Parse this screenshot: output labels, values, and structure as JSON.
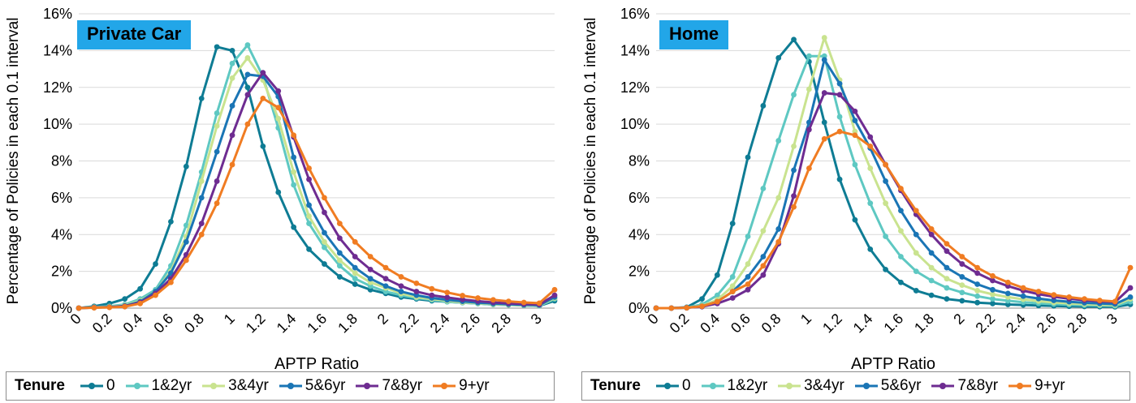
{
  "chart_data": [
    {
      "type": "line",
      "title": "Private Car",
      "xlabel": "APTP Ratio",
      "ylabel": "Percentage of Policies in each 0.1 interval",
      "xlim": [
        0,
        3.1
      ],
      "ylim": [
        0,
        16
      ],
      "x_tick_labels": [
        "0",
        "0.2",
        "0.4",
        "0.6",
        "0.8",
        "1",
        "1.2",
        "1.4",
        "1.6",
        "1.8",
        "2",
        "2.2",
        "2.4",
        "2.6",
        "2.8",
        "3"
      ],
      "y_tick_labels": [
        "0%",
        "2%",
        "4%",
        "6%",
        "8%",
        "10%",
        "12%",
        "14%",
        "16%"
      ],
      "grid": true,
      "legend_title": "Tenure",
      "x": [
        0,
        0.1,
        0.2,
        0.3,
        0.4,
        0.5,
        0.6,
        0.7,
        0.8,
        0.9,
        1.0,
        1.1,
        1.2,
        1.3,
        1.4,
        1.5,
        1.6,
        1.7,
        1.8,
        1.9,
        2.0,
        2.1,
        2.2,
        2.3,
        2.4,
        2.5,
        2.6,
        2.7,
        2.8,
        2.9,
        3.0,
        3.1
      ],
      "series": [
        {
          "name": "0",
          "color": "#0e7c94",
          "values": [
            0,
            0.1,
            0.25,
            0.5,
            1.05,
            2.4,
            4.7,
            7.7,
            11.4,
            14.2,
            14.0,
            12.0,
            8.8,
            6.3,
            4.4,
            3.2,
            2.4,
            1.7,
            1.3,
            1.0,
            0.8,
            0.6,
            0.5,
            0.4,
            0.35,
            0.3,
            0.25,
            0.2,
            0.18,
            0.15,
            0.12,
            0.4
          ]
        },
        {
          "name": "1&2yr",
          "color": "#5ec8c2",
          "values": [
            0,
            0.05,
            0.1,
            0.2,
            0.5,
            1.0,
            2.3,
            4.5,
            7.4,
            10.6,
            13.3,
            14.3,
            12.6,
            9.8,
            6.7,
            4.6,
            3.3,
            2.3,
            1.6,
            1.2,
            0.9,
            0.7,
            0.55,
            0.45,
            0.35,
            0.3,
            0.25,
            0.2,
            0.18,
            0.15,
            0.12,
            0.5
          ]
        },
        {
          "name": "3&4yr",
          "color": "#c9e38f",
          "values": [
            0,
            0.05,
            0.08,
            0.15,
            0.4,
            0.9,
            2.0,
            3.9,
            6.9,
            9.9,
            12.5,
            13.6,
            12.4,
            10.3,
            7.4,
            5.0,
            3.6,
            2.6,
            1.9,
            1.4,
            1.1,
            0.8,
            0.6,
            0.5,
            0.4,
            0.32,
            0.27,
            0.22,
            0.19,
            0.16,
            0.14,
            0.55
          ]
        },
        {
          "name": "5&6yr",
          "color": "#1a75b5",
          "values": [
            0,
            0.03,
            0.06,
            0.12,
            0.35,
            0.9,
            1.9,
            3.6,
            6.0,
            8.5,
            11.0,
            12.7,
            12.6,
            11.5,
            8.2,
            5.6,
            4.1,
            3.0,
            2.2,
            1.6,
            1.2,
            0.9,
            0.7,
            0.55,
            0.45,
            0.37,
            0.3,
            0.25,
            0.21,
            0.18,
            0.16,
            0.6
          ]
        },
        {
          "name": "7&8yr",
          "color": "#6e2c91",
          "values": [
            0,
            0.03,
            0.05,
            0.1,
            0.3,
            0.8,
            1.6,
            2.9,
            4.6,
            6.9,
            9.4,
            11.6,
            12.8,
            11.8,
            9.3,
            7.0,
            5.2,
            3.8,
            2.8,
            2.1,
            1.6,
            1.2,
            0.9,
            0.7,
            0.58,
            0.47,
            0.38,
            0.31,
            0.26,
            0.22,
            0.2,
            0.7
          ]
        },
        {
          "name": "9+yr",
          "color": "#f07c22",
          "values": [
            0,
            0.02,
            0.04,
            0.08,
            0.25,
            0.7,
            1.4,
            2.6,
            4.0,
            5.7,
            7.8,
            10.0,
            11.4,
            10.9,
            9.4,
            7.6,
            6.0,
            4.6,
            3.6,
            2.8,
            2.2,
            1.7,
            1.35,
            1.05,
            0.85,
            0.68,
            0.55,
            0.45,
            0.37,
            0.31,
            0.27,
            1.0
          ]
        }
      ]
    },
    {
      "type": "line",
      "title": "Home",
      "xlabel": "APTP Ratio",
      "ylabel": "Percentage of Policies in each 0.1 interval",
      "xlim": [
        0,
        3.1
      ],
      "ylim": [
        0,
        16
      ],
      "x_tick_labels": [
        "0",
        "0.2",
        "0.4",
        "0.6",
        "0.8",
        "1",
        "1.2",
        "1.4",
        "1.6",
        "1.8",
        "2",
        "2.2",
        "2.4",
        "2.6",
        "2.8",
        "3"
      ],
      "y_tick_labels": [
        "0%",
        "2%",
        "4%",
        "6%",
        "8%",
        "10%",
        "12%",
        "14%",
        "16%"
      ],
      "grid": true,
      "legend_title": "Tenure",
      "x": [
        0,
        0.1,
        0.2,
        0.3,
        0.4,
        0.5,
        0.6,
        0.7,
        0.8,
        0.9,
        1.0,
        1.1,
        1.2,
        1.3,
        1.4,
        1.5,
        1.6,
        1.7,
        1.8,
        1.9,
        2.0,
        2.1,
        2.2,
        2.3,
        2.4,
        2.5,
        2.6,
        2.7,
        2.8,
        2.9,
        3.0,
        3.1
      ],
      "series": [
        {
          "name": "0",
          "color": "#0e7c94",
          "values": [
            0,
            0,
            0.05,
            0.5,
            1.8,
            4.6,
            8.2,
            11.0,
            13.6,
            14.6,
            13.4,
            10.1,
            7.0,
            4.8,
            3.2,
            2.1,
            1.4,
            0.95,
            0.7,
            0.5,
            0.4,
            0.3,
            0.25,
            0.2,
            0.17,
            0.14,
            0.12,
            0.1,
            0.09,
            0.08,
            0.07,
            0.2
          ]
        },
        {
          "name": "1&2yr",
          "color": "#5ec8c2",
          "values": [
            0,
            0,
            0.03,
            0.2,
            0.7,
            1.7,
            3.9,
            6.5,
            9.1,
            11.6,
            13.7,
            13.7,
            10.4,
            7.8,
            5.7,
            3.9,
            2.8,
            2.0,
            1.5,
            1.1,
            0.85,
            0.65,
            0.5,
            0.4,
            0.32,
            0.26,
            0.22,
            0.19,
            0.16,
            0.14,
            0.12,
            0.35
          ]
        },
        {
          "name": "3&4yr",
          "color": "#c9e38f",
          "values": [
            0,
            0,
            0.02,
            0.12,
            0.45,
            1.2,
            2.4,
            4.2,
            6.0,
            8.8,
            11.9,
            14.7,
            12.4,
            9.6,
            7.6,
            5.7,
            4.2,
            3.0,
            2.2,
            1.6,
            1.25,
            0.95,
            0.75,
            0.6,
            0.48,
            0.38,
            0.31,
            0.26,
            0.22,
            0.19,
            0.17,
            0.5
          ]
        },
        {
          "name": "5&6yr",
          "color": "#1a75b5",
          "values": [
            0,
            0,
            0.02,
            0.1,
            0.35,
            0.9,
            1.7,
            2.8,
            4.3,
            7.5,
            10.1,
            13.5,
            12.2,
            10.2,
            8.7,
            6.9,
            5.3,
            4.0,
            3.0,
            2.2,
            1.7,
            1.3,
            1.0,
            0.8,
            0.65,
            0.52,
            0.42,
            0.35,
            0.29,
            0.25,
            0.22,
            0.6
          ]
        },
        {
          "name": "7&8yr",
          "color": "#6e2c91",
          "values": [
            0,
            0,
            0.02,
            0.08,
            0.25,
            0.55,
            1.0,
            1.8,
            3.5,
            6.1,
            9.7,
            11.7,
            11.6,
            10.7,
            9.3,
            7.8,
            6.4,
            5.1,
            4.0,
            3.1,
            2.4,
            1.9,
            1.5,
            1.2,
            0.95,
            0.76,
            0.62,
            0.51,
            0.43,
            0.37,
            0.33,
            1.1
          ]
        },
        {
          "name": "9+yr",
          "color": "#f07c22",
          "values": [
            0,
            0,
            0.02,
            0.1,
            0.35,
            0.9,
            1.3,
            2.3,
            3.6,
            5.5,
            7.6,
            9.2,
            9.6,
            9.4,
            8.8,
            7.8,
            6.5,
            5.3,
            4.3,
            3.5,
            2.8,
            2.2,
            1.75,
            1.4,
            1.1,
            0.9,
            0.72,
            0.6,
            0.5,
            0.42,
            0.36,
            2.2
          ]
        }
      ]
    }
  ]
}
